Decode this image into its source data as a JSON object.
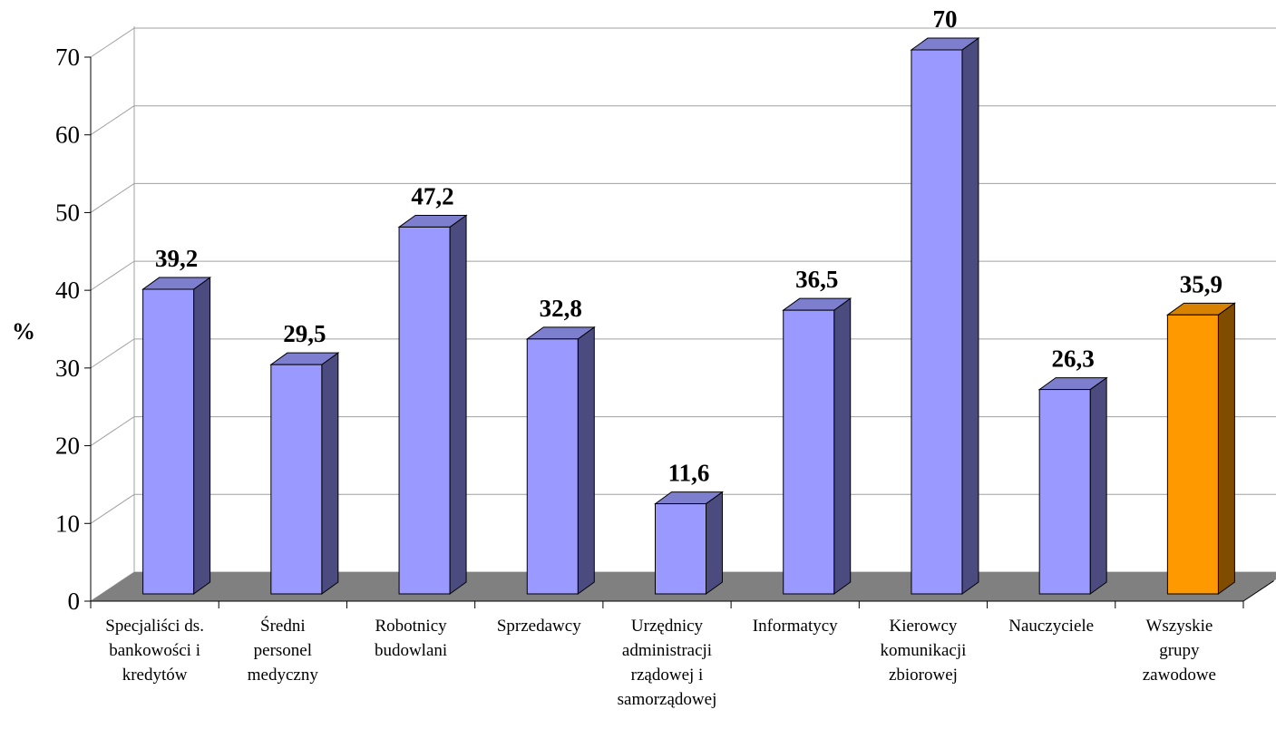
{
  "chart_data": {
    "type": "bar",
    "style": "3d-column",
    "ylabel": "%",
    "ylim": [
      0,
      70
    ],
    "yticks": [
      "0",
      "10",
      "20",
      "30",
      "40",
      "50",
      "60",
      "70"
    ],
    "grid": true,
    "categories": [
      [
        "Specjaliści ds.",
        "bankowości i",
        "kredytów"
      ],
      [
        "Średni",
        "personel",
        "medyczny"
      ],
      [
        "Robotnicy",
        "budowlani"
      ],
      [
        "Sprzedawcy"
      ],
      [
        "Urzędnicy",
        "administracji",
        "rządowej i",
        "samorządowej"
      ],
      [
        "Informatycy"
      ],
      [
        "Kierowcy",
        "komunikacji",
        "zbiorowej"
      ],
      [
        "Nauczyciele"
      ],
      [
        "Wszyskie",
        "grupy",
        "zawodowe"
      ]
    ],
    "values": [
      39.2,
      29.5,
      47.2,
      32.8,
      11.6,
      36.5,
      70,
      26.3,
      35.9
    ],
    "value_labels": [
      "39,2",
      "29,5",
      "47,2",
      "32,8",
      "11,6",
      "36,5",
      "70",
      "26,3",
      "35,9"
    ],
    "highlight_index": 8,
    "colors": {
      "bar_front": "#9999ff",
      "bar_top": "#7e7ecf",
      "bar_side": "#4b4b80",
      "highlight_front": "#ff9900",
      "highlight_top": "#d98200",
      "highlight_side": "#7f4c00",
      "floor": "#808080",
      "grid": "#a0a0a0",
      "axis": "#000000"
    }
  }
}
